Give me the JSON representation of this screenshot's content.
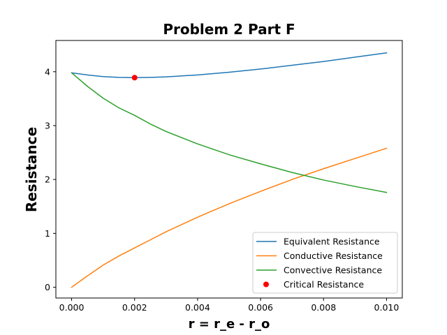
{
  "chart_data": {
    "type": "line",
    "title": "Problem 2 Part F",
    "xlabel": "r = r_e - r_o",
    "ylabel": "Resistance",
    "xlim": [
      -0.0005,
      0.0105
    ],
    "ylim": [
      -0.2,
      4.58
    ],
    "x_ticks": [
      0.0,
      0.002,
      0.004,
      0.006,
      0.008,
      0.01
    ],
    "x_tick_labels": [
      "0.000",
      "0.002",
      "0.004",
      "0.006",
      "0.008",
      "0.010"
    ],
    "y_ticks": [
      0,
      1,
      2,
      3,
      4
    ],
    "y_tick_labels": [
      "0",
      "1",
      "2",
      "3",
      "4"
    ],
    "grid": false,
    "legend_position": "lower-right",
    "x": [
      0.0,
      0.0005,
      0.001,
      0.0015,
      0.002,
      0.0025,
      0.003,
      0.004,
      0.005,
      0.006,
      0.007,
      0.008,
      0.009,
      0.01
    ],
    "series": [
      {
        "name": "Equivalent Resistance",
        "color": "#1f77b4",
        "values": [
          3.98,
          3.94,
          3.91,
          3.895,
          3.89,
          3.895,
          3.905,
          3.94,
          3.99,
          4.05,
          4.12,
          4.19,
          4.27,
          4.35
        ]
      },
      {
        "name": "Conductive Resistance",
        "color": "#ff7f0e",
        "values": [
          0.0,
          0.21,
          0.41,
          0.58,
          0.73,
          0.88,
          1.03,
          1.3,
          1.55,
          1.78,
          2.0,
          2.2,
          2.39,
          2.58
        ]
      },
      {
        "name": "Convective Resistance",
        "color": "#2ca02c",
        "values": [
          3.98,
          3.73,
          3.51,
          3.33,
          3.19,
          3.03,
          2.89,
          2.66,
          2.46,
          2.29,
          2.13,
          1.99,
          1.87,
          1.76
        ]
      }
    ],
    "markers": [
      {
        "name": "Critical Resistance",
        "color": "#ff0000",
        "x": 0.002,
        "y": 3.89
      }
    ]
  }
}
